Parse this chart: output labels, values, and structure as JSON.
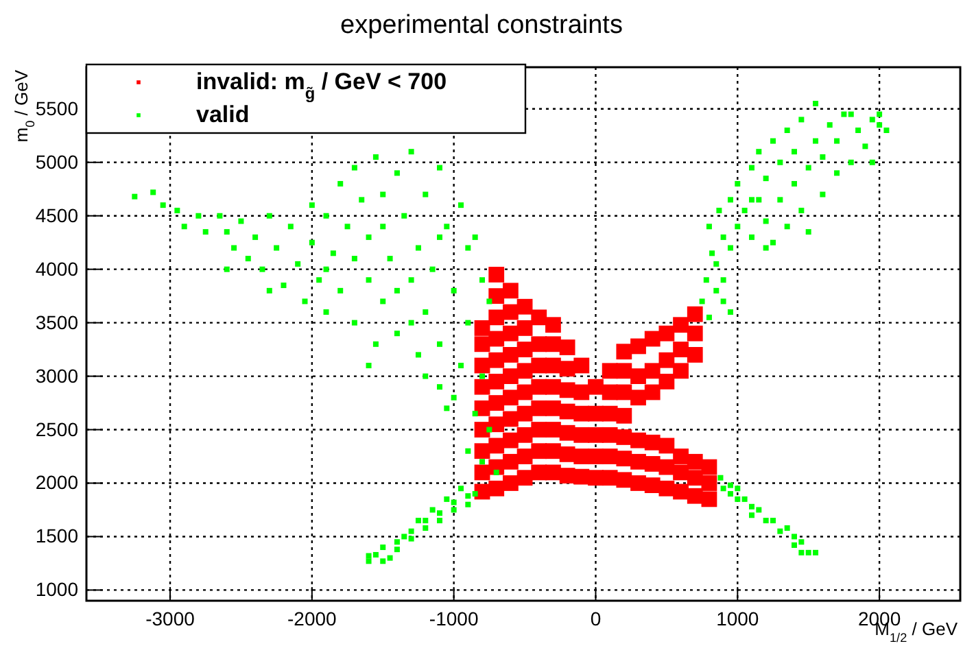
{
  "chart_data": {
    "type": "scatter",
    "title": "experimental constraints",
    "xlabel": "M$_{1/2}$ / GeV",
    "ylabel": "m$_{0}$ / GeV",
    "xlim": [
      -3590,
      2570
    ],
    "ylim": [
      900,
      5890
    ],
    "xticks": [
      -3000,
      -2000,
      -1000,
      0,
      1000,
      2000
    ],
    "yticks": [
      1000,
      1500,
      2000,
      2500,
      3000,
      3500,
      4000,
      4500,
      5000,
      5500
    ],
    "grid": true,
    "legend": "top left",
    "marker": "square",
    "series": [
      {
        "name": "invalid: m$_{g̃}$ / GeV < 700",
        "color": "#ff0000",
        "x": [
          -800,
          -800,
          -800,
          -800,
          -800,
          -800,
          -800,
          -800,
          -800,
          -700,
          -700,
          -700,
          -700,
          -700,
          -700,
          -700,
          -700,
          -700,
          -700,
          -700,
          -600,
          -600,
          -600,
          -600,
          -600,
          -600,
          -600,
          -600,
          -600,
          -600,
          -500,
          -500,
          -500,
          -500,
          -500,
          -500,
          -500,
          -500,
          -500,
          -400,
          -400,
          -400,
          -400,
          -400,
          -400,
          -400,
          -400,
          -300,
          -300,
          -300,
          -300,
          -300,
          -300,
          -300,
          -300,
          -200,
          -200,
          -200,
          -200,
          -200,
          -200,
          -200,
          -100,
          -100,
          -100,
          -100,
          -100,
          -100,
          0,
          0,
          0,
          0,
          0,
          100,
          100,
          100,
          100,
          100,
          100,
          200,
          200,
          200,
          200,
          200,
          200,
          200,
          300,
          300,
          300,
          300,
          300,
          300,
          400,
          400,
          400,
          400,
          400,
          400,
          500,
          500,
          500,
          500,
          500,
          500,
          600,
          600,
          600,
          600,
          600,
          600,
          700,
          700,
          700,
          700,
          700,
          700,
          800,
          800,
          800
        ],
        "values": [
          1920,
          2100,
          2300,
          2500,
          2700,
          2900,
          3100,
          3300,
          3450,
          1950,
          2150,
          2350,
          2550,
          2750,
          2950,
          3150,
          3350,
          3550,
          3750,
          3950,
          2000,
          2200,
          2400,
          2600,
          2800,
          3000,
          3200,
          3400,
          3600,
          3800,
          2050,
          2250,
          2450,
          2650,
          2850,
          3050,
          3250,
          3450,
          3650,
          2100,
          2300,
          2500,
          2700,
          2900,
          3100,
          3300,
          3550,
          2100,
          2300,
          2500,
          2700,
          2900,
          3100,
          3300,
          3480,
          2070,
          2270,
          2470,
          2670,
          2870,
          3070,
          3270,
          2060,
          2250,
          2450,
          2650,
          2850,
          3100,
          2050,
          2250,
          2450,
          2650,
          2900,
          2050,
          2250,
          2450,
          2650,
          2850,
          3050,
          2030,
          2230,
          2430,
          2630,
          2850,
          3050,
          3230,
          2000,
          2200,
          2400,
          2800,
          3000,
          3280,
          1980,
          2180,
          2380,
          2850,
          3050,
          3350,
          1950,
          2150,
          2350,
          2950,
          3150,
          3400,
          1920,
          2100,
          2250,
          3050,
          3250,
          3480,
          1880,
          2050,
          2200,
          3200,
          3400,
          3580,
          1850,
          2000,
          2150
        ]
      },
      {
        "name": "valid",
        "color": "#00ff00",
        "x": [
          -1600,
          -1500,
          -1450,
          -1500,
          -1400,
          -1400,
          -1300,
          -1300,
          -1200,
          -1200,
          -1100,
          -1100,
          -1000,
          -1000,
          -900,
          -900,
          -850,
          -950,
          -1050,
          -1150,
          -1250,
          -1350,
          -1550,
          -1600,
          880,
          900,
          950,
          1000,
          1000,
          1050,
          1100,
          1100,
          1150,
          1200,
          1250,
          1300,
          1350,
          1400,
          1400,
          1450,
          1500,
          1550,
          1450,
          950,
          -3250,
          -3120,
          -3050,
          -2950,
          -2900,
          -2800,
          -2750,
          -2650,
          -2600,
          -2550,
          -2500,
          -2450,
          -2400,
          -2350,
          -2300,
          -2250,
          -2200,
          -2150,
          -2100,
          -2050,
          -2000,
          -2000,
          -1950,
          -1900,
          -1900,
          -1850,
          -1800,
          -1800,
          -1750,
          -1700,
          -1700,
          -1700,
          -1650,
          -1600,
          -1600,
          -1550,
          -1550,
          -1500,
          -1500,
          -1450,
          -1400,
          -1400,
          -1350,
          -1300,
          -1300,
          -1250,
          -1250,
          -1200,
          -1200,
          -1150,
          -1100,
          -1100,
          -1050,
          -1000,
          -1000,
          -950,
          -950,
          -900,
          -900,
          -850,
          -850,
          -800,
          -800,
          -750,
          -750,
          -1100,
          -1050,
          -1300,
          -1600,
          -1500,
          -2600,
          -2300,
          -1900,
          -1100,
          -1400,
          -1200,
          -900,
          -800,
          -700,
          750,
          800,
          850,
          780,
          850,
          900,
          820,
          900,
          800,
          870,
          950,
          950,
          1000,
          1000,
          1050,
          1100,
          1100,
          1150,
          1150,
          1200,
          1200,
          1250,
          1250,
          1300,
          1300,
          1350,
          1350,
          1400,
          1400,
          1450,
          1450,
          1500,
          1550,
          1550,
          1600,
          1600,
          1650,
          1700,
          1700,
          1750,
          1800,
          1850,
          1900,
          1950,
          2000,
          2050,
          1950,
          1500,
          1200,
          1100,
          2000,
          1800,
          900,
          950
        ],
        "values": [
          1270,
          1270,
          1300,
          1400,
          1450,
          1380,
          1480,
          1550,
          1580,
          1650,
          1650,
          1720,
          1750,
          1820,
          1800,
          1880,
          1900,
          1950,
          1850,
          1750,
          1650,
          1500,
          1330,
          1320,
          2050,
          1950,
          1900,
          1950,
          1850,
          1850,
          1780,
          1700,
          1750,
          1650,
          1650,
          1550,
          1580,
          1500,
          1420,
          1350,
          1350,
          1350,
          1450,
          1980,
          4680,
          4720,
          4600,
          4550,
          4400,
          4500,
          4350,
          4500,
          4350,
          4200,
          4450,
          4100,
          4300,
          4000,
          4500,
          4200,
          3850,
          4400,
          4050,
          3700,
          4600,
          4250,
          3900,
          4500,
          3600,
          4150,
          4800,
          3800,
          4400,
          4950,
          3500,
          4100,
          4650,
          3900,
          4300,
          5050,
          3300,
          4700,
          3700,
          4100,
          4900,
          3400,
          4500,
          3900,
          5100,
          4200,
          3200,
          4700,
          3600,
          4000,
          4950,
          3300,
          4400,
          3800,
          2800,
          4600,
          3100,
          4200,
          3500,
          2650,
          4300,
          3900,
          3000,
          2500,
          3700,
          2900,
          2700,
          3500,
          3100,
          4400,
          4000,
          3800,
          4000,
          4300,
          3800,
          3000,
          2300,
          2200,
          2100,
          3700,
          3550,
          3800,
          3900,
          4050,
          3900,
          4150,
          4300,
          4400,
          4550,
          4200,
          4650,
          4400,
          4800,
          4550,
          4300,
          4950,
          4650,
          5100,
          4450,
          4850,
          4250,
          5200,
          4650,
          5000,
          4400,
          5300,
          4800,
          5100,
          4550,
          5400,
          4950,
          5200,
          5550,
          4700,
          5050,
          5350,
          4900,
          5200,
          5450,
          5000,
          5300,
          5150,
          5400,
          5350,
          5300,
          5000,
          4350,
          4200,
          4650,
          5450,
          5450,
          3700,
          3600
        ]
      }
    ]
  }
}
